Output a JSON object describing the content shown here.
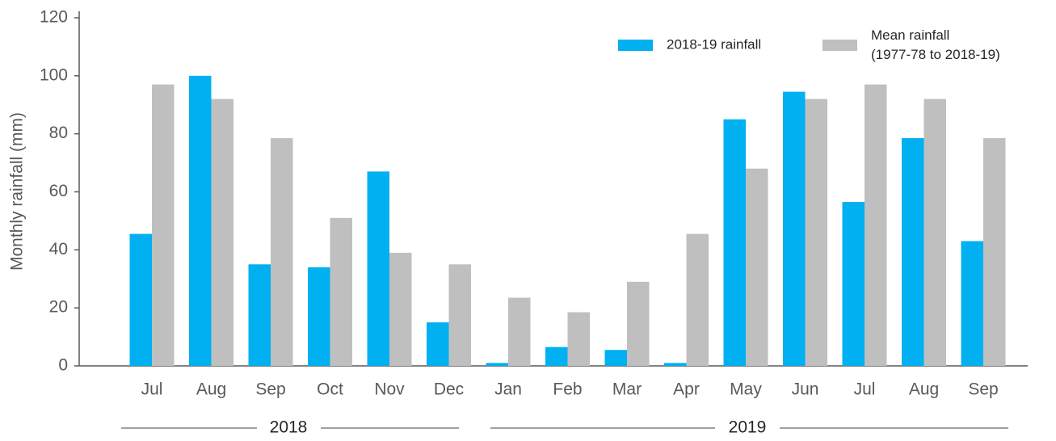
{
  "chart_data": {
    "type": "bar",
    "y_label": "Monthly rainfall (mm)",
    "categories": [
      "Jul",
      "Aug",
      "Sep",
      "Oct",
      "Nov",
      "Dec",
      "Jan",
      "Feb",
      "Mar",
      "Apr",
      "May",
      "Jun",
      "Jul",
      "Aug",
      "Sep"
    ],
    "x_groups": [
      "2018",
      "2019"
    ],
    "series": [
      {
        "name": "2018-19 rainfall",
        "color": "#00b0f0",
        "values": [
          45.5,
          100,
          35,
          34,
          67,
          15,
          1,
          6.5,
          5.5,
          1,
          85,
          94.5,
          56.5,
          78.5,
          43
        ]
      },
      {
        "name": "Mean rainfall (1977-78 to 2018-19)",
        "color": "#bfbfbf",
        "values": [
          97,
          92,
          78.5,
          51,
          39,
          35,
          23.5,
          18.5,
          29,
          45.5,
          68,
          92,
          97,
          92,
          78.5
        ]
      }
    ],
    "ylim": [
      0,
      120
    ],
    "yticks": [
      0,
      20,
      40,
      60,
      80,
      100,
      120
    ],
    "grid": false,
    "legend": "top-right"
  }
}
